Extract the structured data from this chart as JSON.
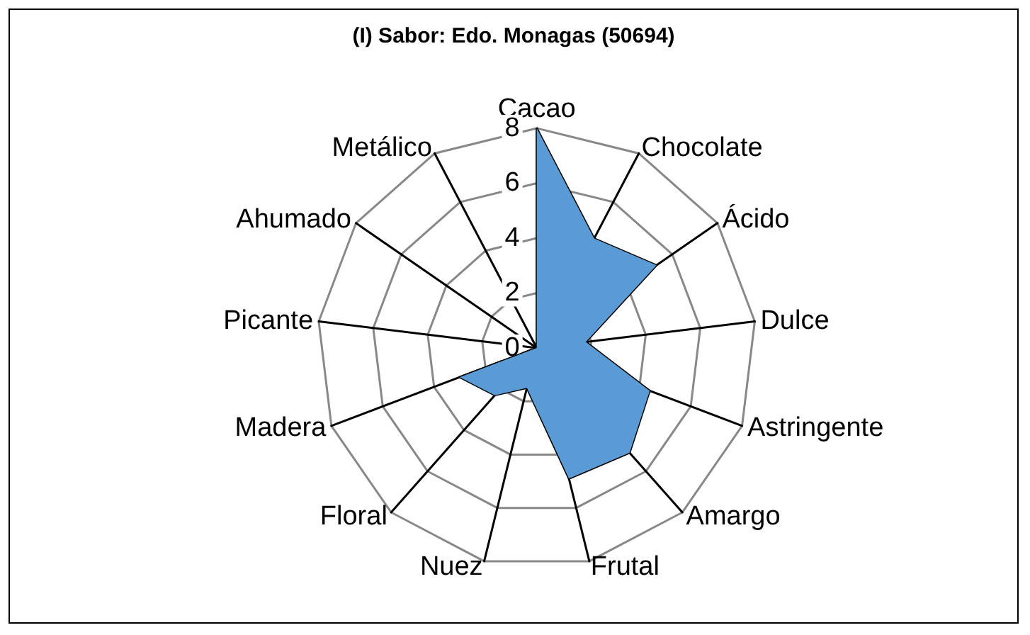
{
  "chart_data": {
    "type": "radar",
    "title": "(I) Sabor: Edo. Monagas (50694)",
    "categories": [
      "Cacao",
      "Chocolate",
      "Ácido",
      "Dulce",
      "Astringente",
      "Amargo",
      "Frutal",
      "Nuez",
      "Floral",
      "Madera",
      "Picante",
      "Ahumado",
      "Metálico"
    ],
    "series": [
      {
        "color": "#5b9bd5",
        "values": [
          8,
          4.5,
          5.3,
          1.8,
          4.4,
          5.1,
          4.9,
          1.5,
          2.3,
          3.0,
          0,
          0,
          0
        ]
      }
    ],
    "ylim": [
      0,
      8
    ],
    "yticks": [
      0,
      2,
      4,
      6,
      8
    ],
    "marker": "none"
  }
}
